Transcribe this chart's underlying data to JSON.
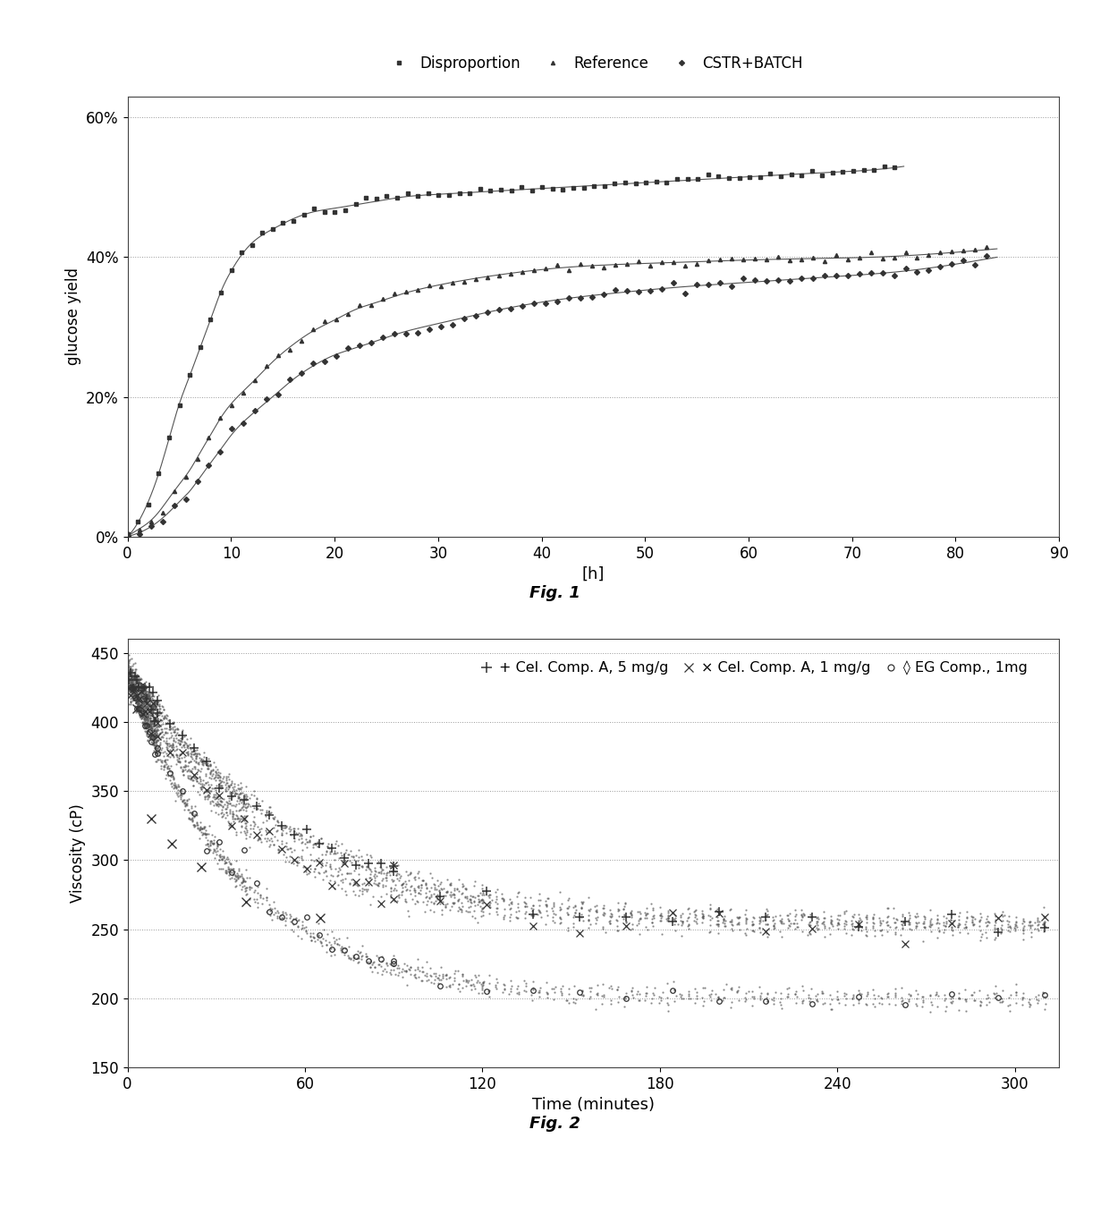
{
  "fig1": {
    "xlabel": "[h]",
    "ylabel": "glucose yield",
    "xlim": [
      0,
      90
    ],
    "ylim": [
      0.0,
      0.63
    ],
    "yticks": [
      0.0,
      0.2,
      0.4,
      0.6
    ],
    "ytick_labels": [
      "0%",
      "20%",
      "40%",
      "60%"
    ],
    "xticks": [
      0,
      10,
      20,
      30,
      40,
      50,
      60,
      70,
      80,
      90
    ],
    "legend_labels": [
      "Disproportion",
      "Reference",
      "CSTR+BATCH"
    ],
    "fig_label": "Fig. 1",
    "series": {
      "disproportion": {
        "x": [
          0,
          1,
          2,
          3,
          4,
          5,
          6,
          7,
          8,
          9,
          10,
          12,
          14,
          16,
          18,
          20,
          22,
          24,
          26,
          30,
          36,
          42,
          48,
          54,
          60,
          66,
          72,
          75
        ],
        "y": [
          0,
          0.02,
          0.05,
          0.09,
          0.14,
          0.19,
          0.23,
          0.27,
          0.31,
          0.35,
          0.38,
          0.42,
          0.44,
          0.455,
          0.465,
          0.47,
          0.475,
          0.48,
          0.485,
          0.49,
          0.495,
          0.5,
          0.505,
          0.51,
          0.515,
          0.52,
          0.525,
          0.53
        ]
      },
      "reference": {
        "x": [
          0,
          1,
          2,
          3,
          4,
          5,
          6,
          7,
          8,
          9,
          10,
          12,
          14,
          16,
          18,
          20,
          22,
          24,
          26,
          30,
          36,
          42,
          48,
          54,
          60,
          66,
          72,
          75,
          80,
          84
        ],
        "y": [
          0,
          0.01,
          0.02,
          0.035,
          0.055,
          0.075,
          0.095,
          0.12,
          0.145,
          0.17,
          0.19,
          0.22,
          0.25,
          0.275,
          0.295,
          0.31,
          0.325,
          0.335,
          0.345,
          0.36,
          0.375,
          0.385,
          0.39,
          0.393,
          0.396,
          0.398,
          0.4,
          0.402,
          0.407,
          0.412
        ]
      },
      "cstr_batch": {
        "x": [
          0,
          1,
          2,
          3,
          4,
          5,
          6,
          7,
          8,
          9,
          10,
          12,
          14,
          16,
          18,
          20,
          22,
          24,
          26,
          30,
          36,
          42,
          48,
          54,
          60,
          66,
          72,
          75,
          80,
          84
        ],
        "y": [
          0,
          0.005,
          0.012,
          0.022,
          0.035,
          0.05,
          0.065,
          0.085,
          0.105,
          0.125,
          0.145,
          0.175,
          0.2,
          0.225,
          0.245,
          0.26,
          0.27,
          0.28,
          0.29,
          0.305,
          0.325,
          0.34,
          0.35,
          0.358,
          0.364,
          0.37,
          0.376,
          0.38,
          0.39,
          0.4
        ]
      }
    }
  },
  "fig2": {
    "xlabel": "Time (minutes)",
    "ylabel": "Viscosity (cP)",
    "xlim": [
      0,
      315
    ],
    "ylim": [
      150,
      460
    ],
    "yticks": [
      150,
      200,
      250,
      300,
      350,
      400,
      450
    ],
    "xticks": [
      0,
      60,
      120,
      180,
      240,
      300
    ],
    "legend_labels": [
      "Cel. Comp. A, 5 mg/g",
      "Cel. Comp. A, 1 mg/g",
      "EG Comp., 1mg"
    ],
    "legend_markers": [
      "+",
      "x",
      "o"
    ],
    "fig_label": "Fig. 2",
    "V0_5mg": 440,
    "Vinf_5mg": 253,
    "tau_5mg": 55,
    "V0_1mg": 430,
    "Vinf_1mg": 253,
    "tau_1mg": 45,
    "V0_eg": 435,
    "Vinf_eg": 200,
    "tau_eg": 38
  }
}
